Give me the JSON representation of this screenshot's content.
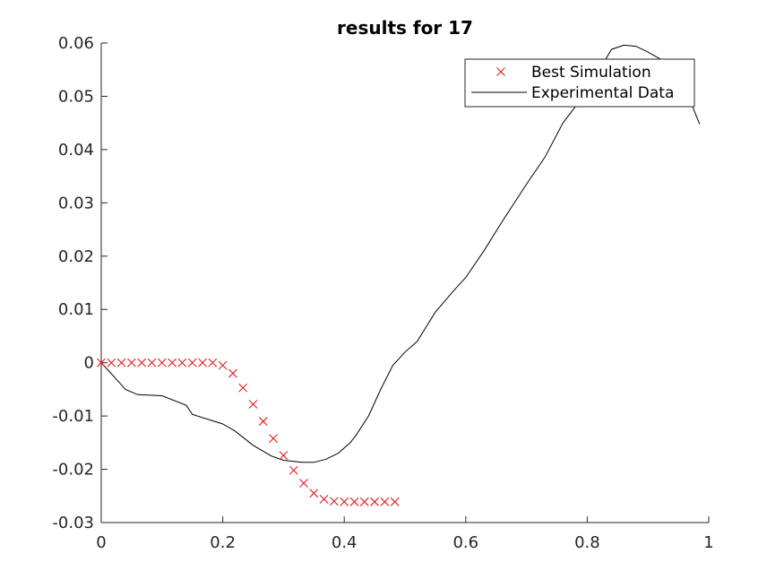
{
  "chart_data": {
    "type": "line",
    "title": "results for 17",
    "xlabel": "",
    "ylabel": "",
    "xlim": [
      0,
      1
    ],
    "ylim": [
      -0.03,
      0.06
    ],
    "x_ticks": [
      0,
      0.2,
      0.4,
      0.6,
      0.8,
      1
    ],
    "x_tick_labels": [
      "0",
      "0.2",
      "0.4",
      "0.6",
      "0.8",
      "1"
    ],
    "y_ticks": [
      -0.03,
      -0.02,
      -0.01,
      0,
      0.01,
      0.02,
      0.03,
      0.04,
      0.05,
      0.06
    ],
    "y_tick_labels": [
      "-0.03",
      "-0.02",
      "-0.01",
      "0",
      "0.01",
      "0.02",
      "0.03",
      "0.04",
      "0.05",
      "0.06"
    ],
    "grid": false,
    "legend_position": "top-right",
    "series": [
      {
        "name": "Best Simulation",
        "style": "markers",
        "marker": "x",
        "color": "#e41a1c",
        "x": [
          0,
          0.0167,
          0.0333,
          0.05,
          0.0667,
          0.0833,
          0.1,
          0.1167,
          0.1333,
          0.15,
          0.1667,
          0.1833,
          0.2,
          0.2167,
          0.2333,
          0.25,
          0.2667,
          0.2833,
          0.3,
          0.3167,
          0.3333,
          0.35,
          0.3667,
          0.3833,
          0.4,
          0.4167,
          0.4333,
          0.45,
          0.4667,
          0.4833
        ],
        "y": [
          0,
          0,
          0,
          0,
          0,
          0,
          0,
          0,
          0,
          0,
          0,
          0,
          -0.0005,
          -0.002,
          -0.0047,
          -0.0078,
          -0.011,
          -0.0142,
          -0.0174,
          -0.0202,
          -0.0226,
          -0.0245,
          -0.0256,
          -0.026,
          -0.0261,
          -0.0261,
          -0.0261,
          -0.0261,
          -0.0261,
          -0.0261
        ]
      },
      {
        "name": "Experimental Data",
        "style": "line",
        "color": "#000000",
        "x": [
          0,
          0.02,
          0.04,
          0.06,
          0.1,
          0.14,
          0.15,
          0.2,
          0.22,
          0.25,
          0.28,
          0.3,
          0.33,
          0.35,
          0.37,
          0.39,
          0.41,
          0.42,
          0.44,
          0.46,
          0.48,
          0.5,
          0.52,
          0.55,
          0.58,
          0.6,
          0.63,
          0.66,
          0.7,
          0.73,
          0.76,
          0.8,
          0.82,
          0.84,
          0.86,
          0.88,
          0.9,
          0.92,
          0.95,
          0.97,
          0.985
        ],
        "y": [
          0,
          -0.0025,
          -0.005,
          -0.006,
          -0.0062,
          -0.008,
          -0.0097,
          -0.0115,
          -0.0128,
          -0.0155,
          -0.0175,
          -0.0183,
          -0.0187,
          -0.0187,
          -0.0181,
          -0.017,
          -0.015,
          -0.0135,
          -0.01,
          -0.005,
          -0.0005,
          0.002,
          0.004,
          0.0095,
          0.0135,
          0.016,
          0.021,
          0.0265,
          0.0335,
          0.0385,
          0.045,
          0.051,
          0.055,
          0.0588,
          0.0596,
          0.0594,
          0.0583,
          0.057,
          0.054,
          0.049,
          0.0448
        ]
      }
    ]
  }
}
